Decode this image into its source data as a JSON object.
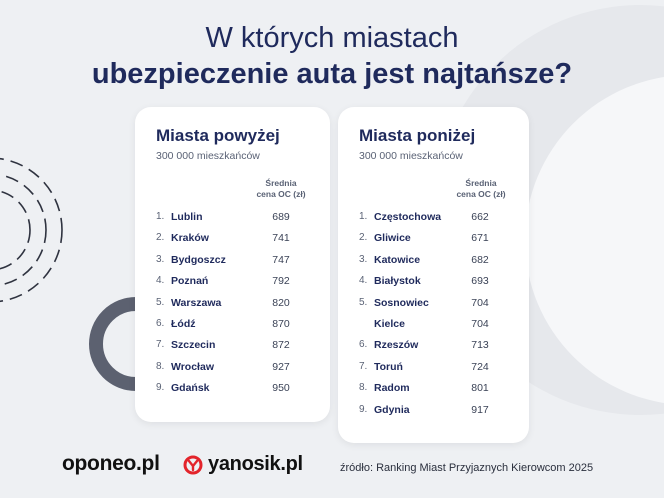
{
  "title": {
    "line1": "W których miastach",
    "line2": "ubezpieczenie auta jest najtańsze?"
  },
  "left_card": {
    "title": "Miasta powyżej",
    "subtitle": "300 000 mieszkańców",
    "column_header_1": "Średnia",
    "column_header_2": "cena OC (zł)",
    "rows": [
      {
        "rank": "1.",
        "city": "Lublin",
        "price": "689"
      },
      {
        "rank": "2.",
        "city": "Kraków",
        "price": "741"
      },
      {
        "rank": "3.",
        "city": "Bydgoszcz",
        "price": "747"
      },
      {
        "rank": "4.",
        "city": "Poznań",
        "price": "792"
      },
      {
        "rank": "5.",
        "city": "Warszawa",
        "price": "820"
      },
      {
        "rank": "6.",
        "city": "Łódź",
        "price": "870"
      },
      {
        "rank": "7.",
        "city": "Szczecin",
        "price": "872"
      },
      {
        "rank": "8.",
        "city": "Wrocław",
        "price": "927"
      },
      {
        "rank": "9.",
        "city": "Gdańsk",
        "price": "950"
      }
    ]
  },
  "right_card": {
    "title": "Miasta poniżej",
    "subtitle": "300 000 mieszkańców",
    "column_header_1": "Średnia",
    "column_header_2": "cena OC (zł)",
    "rows": [
      {
        "rank": "1.",
        "city": "Częstochowa",
        "price": "662"
      },
      {
        "rank": "2.",
        "city": "Gliwice",
        "price": "671"
      },
      {
        "rank": "3.",
        "city": "Katowice",
        "price": "682"
      },
      {
        "rank": "4.",
        "city": "Białystok",
        "price": "693"
      },
      {
        "rank": "5.",
        "city": "Sosnowiec",
        "price": "704"
      },
      {
        "rank": "",
        "city": "Kielce",
        "price": "704"
      },
      {
        "rank": "6.",
        "city": "Rzeszów",
        "price": "713"
      },
      {
        "rank": "7.",
        "city": "Toruń",
        "price": "724"
      },
      {
        "rank": "8.",
        "city": "Radom",
        "price": "801"
      },
      {
        "rank": "9.",
        "city": "Gdynia",
        "price": "917"
      }
    ]
  },
  "footer": {
    "logo_oponeo": "oponeo.pl",
    "logo_yanosik": "yanosik.pl",
    "source": "źródło: Ranking Miast Przyjaznych Kierowcom 2025"
  },
  "colors": {
    "navy": "#1f2a5c",
    "yanosik_red": "#e3242b"
  }
}
